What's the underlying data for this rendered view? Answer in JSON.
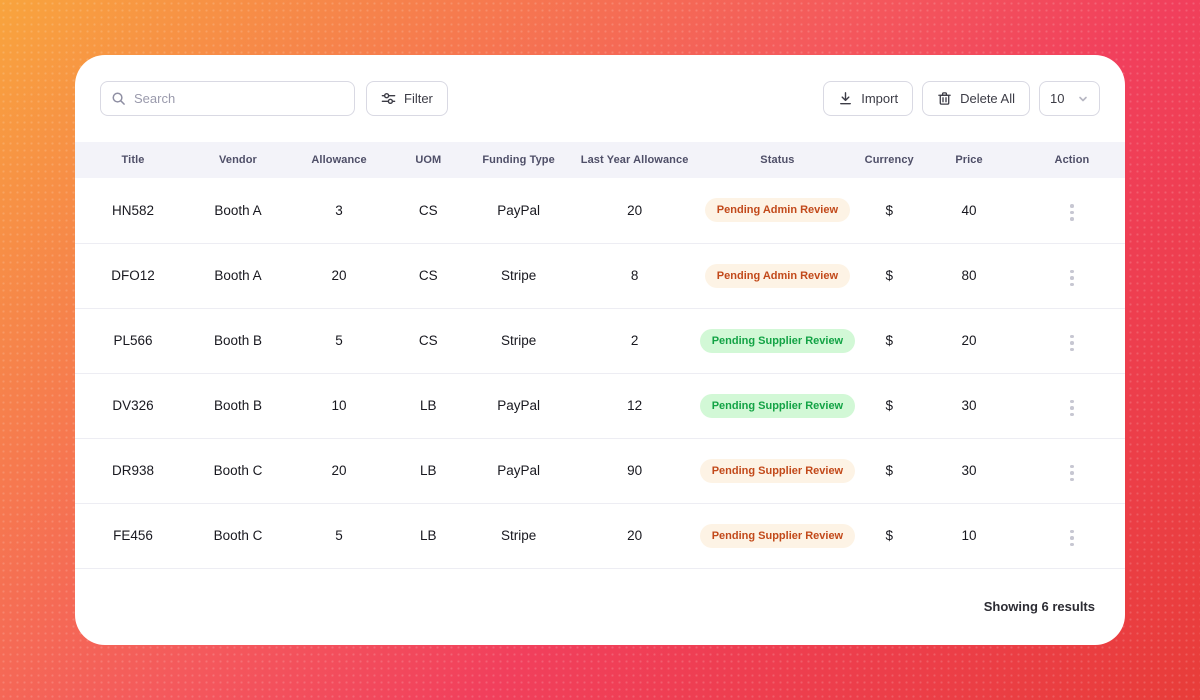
{
  "toolbar": {
    "search_placeholder": "Search",
    "filter_label": "Filter",
    "import_label": "Import",
    "delete_all_label": "Delete All",
    "page_size_value": "10"
  },
  "table": {
    "columns": [
      "Title",
      "Vendor",
      "Allowance",
      "UOM",
      "Funding Type",
      "Last Year Allowance",
      "Status",
      "Currency",
      "Price",
      "Action"
    ],
    "rows": [
      {
        "title": "HN582",
        "vendor": "Booth A",
        "allowance": "3",
        "uom": "CS",
        "funding_type": "PayPal",
        "last_year_allowance": "20",
        "status": "Pending Admin Review",
        "status_variant": "orange",
        "currency": "$",
        "price": "40"
      },
      {
        "title": "DFO12",
        "vendor": "Booth A",
        "allowance": "20",
        "uom": "CS",
        "funding_type": "Stripe",
        "last_year_allowance": "8",
        "status": "Pending Admin Review",
        "status_variant": "orange",
        "currency": "$",
        "price": "80"
      },
      {
        "title": "PL566",
        "vendor": "Booth B",
        "allowance": "5",
        "uom": "CS",
        "funding_type": "Stripe",
        "last_year_allowance": "2",
        "status": "Pending Supplier Review",
        "status_variant": "green",
        "currency": "$",
        "price": "20"
      },
      {
        "title": "DV326",
        "vendor": "Booth B",
        "allowance": "10",
        "uom": "LB",
        "funding_type": "PayPal",
        "last_year_allowance": "12",
        "status": "Pending Supplier Review",
        "status_variant": "green",
        "currency": "$",
        "price": "30"
      },
      {
        "title": "DR938",
        "vendor": "Booth C",
        "allowance": "20",
        "uom": "LB",
        "funding_type": "PayPal",
        "last_year_allowance": "90",
        "status": "Pending Supplier Review",
        "status_variant": "orange",
        "currency": "$",
        "price": "30"
      },
      {
        "title": "FE456",
        "vendor": "Booth C",
        "allowance": "5",
        "uom": "LB",
        "funding_type": "Stripe",
        "last_year_allowance": "20",
        "status": "Pending Supplier Review",
        "status_variant": "orange",
        "currency": "$",
        "price": "10"
      }
    ]
  },
  "footer": {
    "showing_text": "Showing  6 results"
  },
  "icons": {
    "search": "search-icon",
    "filter": "filter-sliders-icon",
    "import": "download-icon",
    "delete": "trash-icon",
    "dropdown": "chevron-down-icon",
    "row_actions": "kebab-menu-icon"
  },
  "colors": {
    "background_gradient": [
      "#f8a43d",
      "#f13f5c",
      "#e83d39"
    ],
    "card_background": "#ffffff",
    "header_row_background": "#f3f3f9",
    "badge_orange_text": "#c2491a",
    "badge_orange_bg": "#fdf3e5",
    "badge_green_text": "#13a345",
    "badge_green_bg": "#d2f8d6",
    "border": "#d9d9e3",
    "row_divider": "#ededf3"
  }
}
